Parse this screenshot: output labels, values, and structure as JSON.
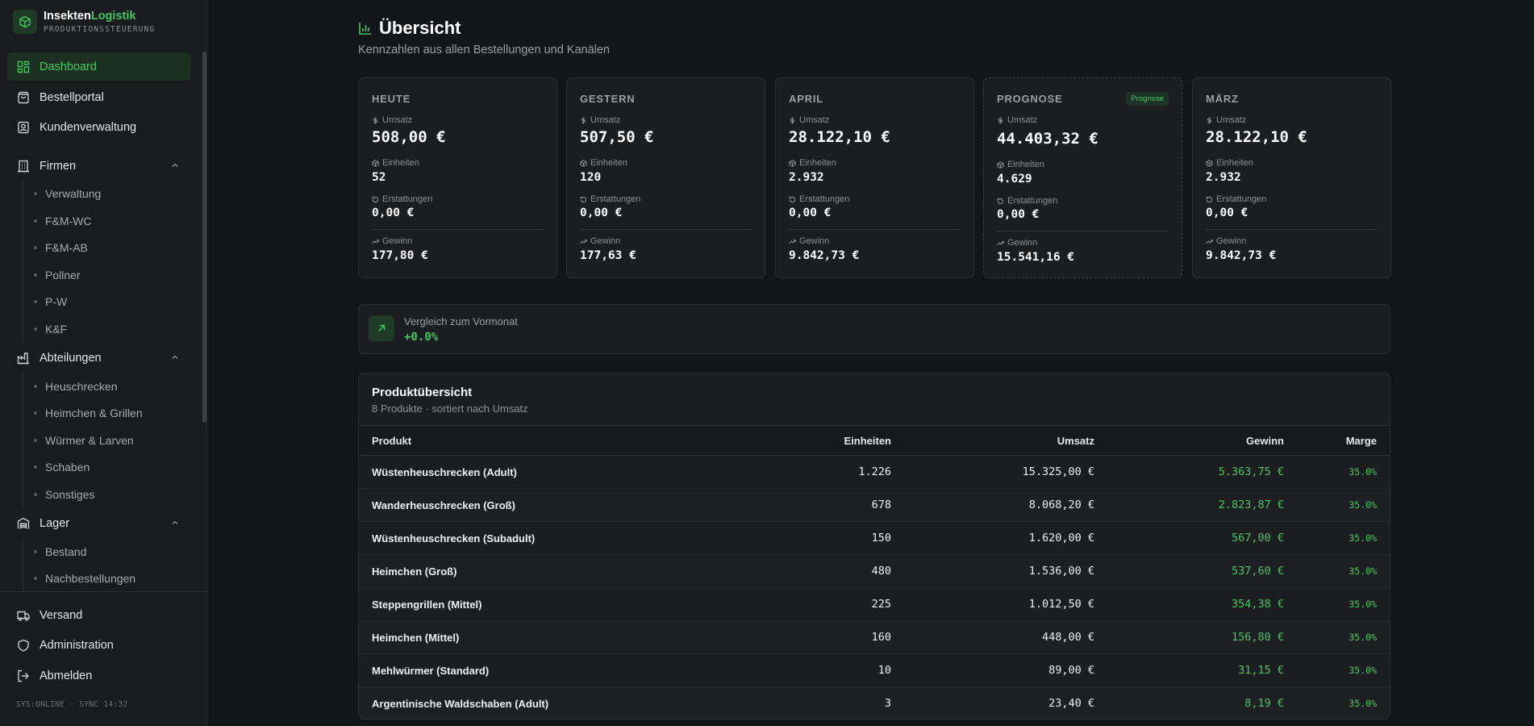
{
  "brand": {
    "name_part1": "Insekten",
    "name_part2": "Logistik",
    "subtitle": "PRODUKTIONSSTEUERUNG"
  },
  "sidebar": {
    "main_items": [
      {
        "label": "Dashboard",
        "icon": "dashboard-icon",
        "active": true
      },
      {
        "label": "Bestellportal",
        "icon": "shopping-bag-icon"
      },
      {
        "label": "Kundenverwaltung",
        "icon": "contacts-icon"
      }
    ],
    "groups": [
      {
        "label": "Firmen",
        "icon": "building-icon",
        "items": [
          "Verwaltung",
          "F&M-WC",
          "F&M-AB",
          "Pollner",
          "P-W",
          "K&F"
        ]
      },
      {
        "label": "Abteilungen",
        "icon": "factory-icon",
        "items": [
          "Heuschrecken",
          "Heimchen & Grillen",
          "Würmer & Larven",
          "Schaben",
          "Sonstiges"
        ]
      },
      {
        "label": "Lager",
        "icon": "warehouse-icon",
        "items": [
          "Bestand",
          "Nachbestellungen"
        ]
      }
    ],
    "bottom_items": [
      {
        "label": "Versand",
        "icon": "truck-icon"
      },
      {
        "label": "Administration",
        "icon": "shield-icon"
      },
      {
        "label": "Abmelden",
        "icon": "logout-icon"
      }
    ],
    "status": "SYS:ONLINE · SYNC 14:32"
  },
  "header": {
    "title": "Übersicht",
    "subtitle": "Kennzahlen aus allen Bestellungen und Kanälen"
  },
  "cards": [
    {
      "title": "HEUTE",
      "umsatz": "508,00 €",
      "einheiten": "52",
      "erstattungen": "0,00 €",
      "gewinn": "177,80 €"
    },
    {
      "title": "GESTERN",
      "umsatz": "507,50 €",
      "einheiten": "120",
      "erstattungen": "0,00 €",
      "gewinn": "177,63 €"
    },
    {
      "title": "APRIL",
      "umsatz": "28.122,10 €",
      "einheiten": "2.932",
      "erstattungen": "0,00 €",
      "gewinn": "9.842,73 €"
    },
    {
      "title": "PROGNOSE",
      "badge": "Prognose",
      "umsatz": "44.403,32 €",
      "einheiten": "4.629",
      "erstattungen": "0,00 €",
      "gewinn": "15.541,16 €"
    },
    {
      "title": "MÄRZ",
      "umsatz": "28.122,10 €",
      "einheiten": "2.932",
      "erstattungen": "0,00 €",
      "gewinn": "9.842,73 €"
    }
  ],
  "metric_labels": {
    "umsatz": "Umsatz",
    "einheiten": "Einheiten",
    "erstattungen": "Erstattungen",
    "gewinn": "Gewinn"
  },
  "compare": {
    "label": "Vergleich zum Vormonat",
    "value": "+0.0%"
  },
  "products": {
    "title": "Produktübersicht",
    "subtitle": "8 Produkte · sortiert nach Umsatz",
    "columns": [
      "Produkt",
      "Einheiten",
      "Umsatz",
      "Gewinn",
      "Marge"
    ],
    "rows": [
      [
        "Wüstenheuschrecken (Adult)",
        "1.226",
        "15.325,00 €",
        "5.363,75 €",
        "35.0%"
      ],
      [
        "Wanderheuschrecken (Groß)",
        "678",
        "8.068,20 €",
        "2.823,87 €",
        "35.0%"
      ],
      [
        "Wüstenheuschrecken (Subadult)",
        "150",
        "1.620,00 €",
        "567,00 €",
        "35.0%"
      ],
      [
        "Heimchen (Groß)",
        "480",
        "1.536,00 €",
        "537,60 €",
        "35.0%"
      ],
      [
        "Steppengrillen (Mittel)",
        "225",
        "1.012,50 €",
        "354,38 €",
        "35.0%"
      ],
      [
        "Heimchen (Mittel)",
        "160",
        "448,00 €",
        "156,80 €",
        "35.0%"
      ],
      [
        "Mehlwürmer (Standard)",
        "10",
        "89,00 €",
        "31,15 €",
        "35.0%"
      ],
      [
        "Argentinische Waldschaben (Adult)",
        "3",
        "23,40 €",
        "8,19 €",
        "35.0%"
      ]
    ]
  },
  "colors": {
    "accent": "#3fc960",
    "background": "#141518",
    "panel": "#1c1d21",
    "sidebar": "#1a1b1f"
  }
}
